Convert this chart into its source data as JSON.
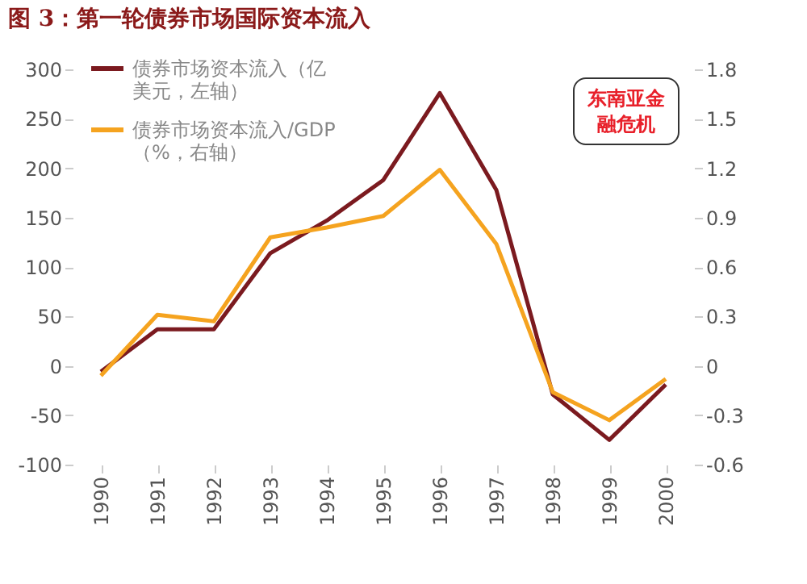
{
  "chart_data": {
    "type": "line",
    "title": "图 3：第一轮债券市场国际资本流入",
    "categories": [
      "1990",
      "1991",
      "1992",
      "1993",
      "1994",
      "1995",
      "1996",
      "1997",
      "1998",
      "1999",
      "2000"
    ],
    "series": [
      {
        "name": "债券市场资本流入（亿美元，左轴）",
        "color": "#7b1a1f",
        "values": [
          -6,
          37,
          37,
          114,
          147,
          188,
          276,
          178,
          -29,
          -75,
          -19
        ]
      },
      {
        "name": "债券市场资本流入/GDP（%，右轴）",
        "color": "#f5a31f",
        "axis": "y2",
        "values": [
          -0.06,
          0.31,
          0.27,
          0.78,
          0.84,
          0.91,
          1.19,
          0.74,
          -0.16,
          -0.33,
          -0.08
        ]
      }
    ],
    "ylim": [
      -100,
      300
    ],
    "yticks": [
      -100,
      -50,
      0,
      50,
      100,
      150,
      200,
      250,
      300
    ],
    "y2lim": [
      -0.6,
      1.8
    ],
    "y2ticks": [
      {
        "value": -0.6,
        "label": "-0.6"
      },
      {
        "value": -0.3,
        "label": "-0.3"
      },
      0,
      {
        "value": 0.3,
        "label": "0.3"
      },
      {
        "value": 0.6,
        "label": "0.6"
      },
      {
        "value": 0.9,
        "label": "0.9"
      },
      {
        "value": 1.2,
        "label": "1.2"
      },
      {
        "value": 1.5,
        "label": "1.5"
      },
      {
        "value": 1.8,
        "label": "1.8"
      }
    ],
    "annotations": [
      "东南亚金融危机"
    ],
    "legend": "top left",
    "grid": false,
    "marker": "none",
    "line_style": "solid"
  }
}
